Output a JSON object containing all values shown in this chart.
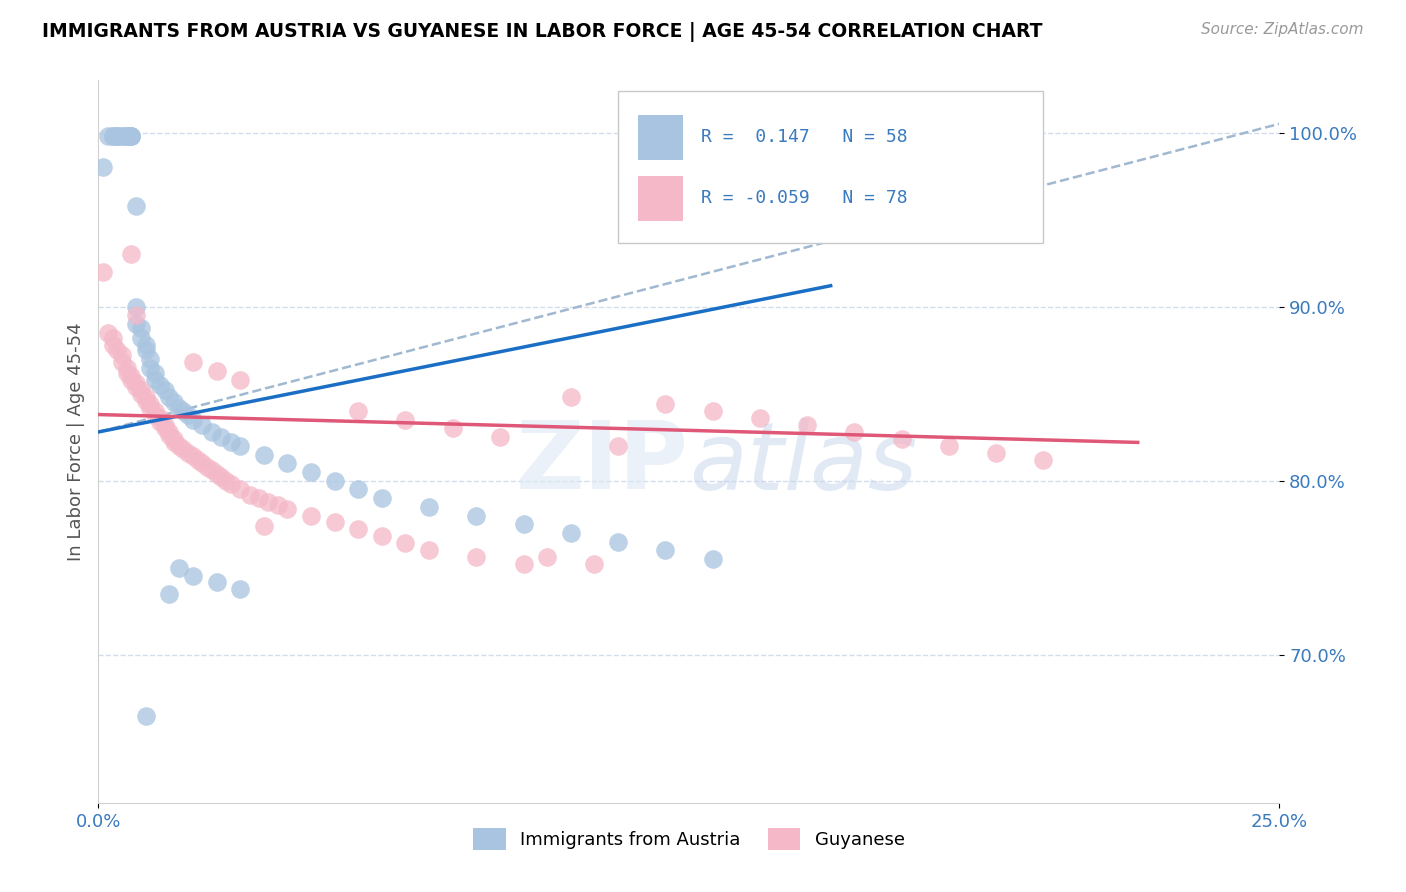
{
  "title": "IMMIGRANTS FROM AUSTRIA VS GUYANESE IN LABOR FORCE | AGE 45-54 CORRELATION CHART",
  "source": "Source: ZipAtlas.com",
  "ylabel": "In Labor Force | Age 45-54",
  "xlim": [
    0.0,
    0.25
  ],
  "ylim": [
    0.615,
    1.03
  ],
  "x_ticks": [
    0.0,
    0.25
  ],
  "x_tick_labels": [
    "0.0%",
    "25.0%"
  ],
  "y_ticks": [
    0.7,
    0.8,
    0.9,
    1.0
  ],
  "y_tick_labels": [
    "70.0%",
    "80.0%",
    "90.0%",
    "100.0%"
  ],
  "blue_color": "#a8c4e0",
  "pink_color": "#f4b8c8",
  "line_blue": "#1a6fc4",
  "line_pink": "#e05878",
  "line_dash_color": "#a0b8d0",
  "watermark_zip": "ZIP",
  "watermark_atlas": "atlas",
  "austria_scatter_x": [
    0.001,
    0.002,
    0.003,
    0.003,
    0.004,
    0.004,
    0.004,
    0.005,
    0.005,
    0.006,
    0.006,
    0.006,
    0.007,
    0.007,
    0.007,
    0.008,
    0.008,
    0.008,
    0.009,
    0.009,
    0.01,
    0.01,
    0.011,
    0.011,
    0.012,
    0.012,
    0.013,
    0.014,
    0.015,
    0.016,
    0.017,
    0.018,
    0.019,
    0.02,
    0.022,
    0.024,
    0.026,
    0.028,
    0.03,
    0.035,
    0.04,
    0.045,
    0.05,
    0.055,
    0.06,
    0.07,
    0.08,
    0.09,
    0.1,
    0.11,
    0.12,
    0.13,
    0.017,
    0.02,
    0.025,
    0.03,
    0.015,
    0.01
  ],
  "austria_scatter_y": [
    0.98,
    0.998,
    0.998,
    0.998,
    0.998,
    0.998,
    0.998,
    0.998,
    0.998,
    0.998,
    0.998,
    0.998,
    0.998,
    0.998,
    0.998,
    0.958,
    0.9,
    0.89,
    0.888,
    0.882,
    0.878,
    0.875,
    0.87,
    0.865,
    0.862,
    0.858,
    0.855,
    0.852,
    0.848,
    0.845,
    0.842,
    0.84,
    0.838,
    0.835,
    0.832,
    0.828,
    0.825,
    0.822,
    0.82,
    0.815,
    0.81,
    0.805,
    0.8,
    0.795,
    0.79,
    0.785,
    0.78,
    0.775,
    0.77,
    0.765,
    0.76,
    0.755,
    0.75,
    0.745,
    0.742,
    0.738,
    0.735,
    0.665
  ],
  "guyanese_scatter_x": [
    0.001,
    0.002,
    0.003,
    0.003,
    0.004,
    0.005,
    0.005,
    0.006,
    0.006,
    0.007,
    0.007,
    0.008,
    0.008,
    0.009,
    0.009,
    0.01,
    0.01,
    0.011,
    0.011,
    0.012,
    0.012,
    0.013,
    0.013,
    0.014,
    0.014,
    0.015,
    0.015,
    0.016,
    0.016,
    0.017,
    0.018,
    0.019,
    0.02,
    0.021,
    0.022,
    0.023,
    0.024,
    0.025,
    0.026,
    0.027,
    0.028,
    0.03,
    0.032,
    0.034,
    0.036,
    0.038,
    0.04,
    0.045,
    0.05,
    0.055,
    0.06,
    0.065,
    0.07,
    0.08,
    0.09,
    0.1,
    0.12,
    0.13,
    0.14,
    0.15,
    0.16,
    0.17,
    0.18,
    0.19,
    0.2,
    0.055,
    0.065,
    0.075,
    0.085,
    0.11,
    0.007,
    0.008,
    0.02,
    0.025,
    0.03,
    0.035,
    0.095,
    0.105
  ],
  "guyanese_scatter_y": [
    0.92,
    0.885,
    0.882,
    0.878,
    0.875,
    0.872,
    0.868,
    0.865,
    0.862,
    0.86,
    0.858,
    0.856,
    0.854,
    0.852,
    0.85,
    0.848,
    0.846,
    0.844,
    0.842,
    0.84,
    0.838,
    0.836,
    0.834,
    0.832,
    0.83,
    0.828,
    0.826,
    0.824,
    0.822,
    0.82,
    0.818,
    0.816,
    0.814,
    0.812,
    0.81,
    0.808,
    0.806,
    0.804,
    0.802,
    0.8,
    0.798,
    0.795,
    0.792,
    0.79,
    0.788,
    0.786,
    0.784,
    0.78,
    0.776,
    0.772,
    0.768,
    0.764,
    0.76,
    0.756,
    0.752,
    0.848,
    0.844,
    0.84,
    0.836,
    0.832,
    0.828,
    0.824,
    0.82,
    0.816,
    0.812,
    0.84,
    0.835,
    0.83,
    0.825,
    0.82,
    0.93,
    0.895,
    0.868,
    0.863,
    0.858,
    0.774,
    0.756,
    0.752
  ],
  "blue_line_x": [
    0.0,
    0.155
  ],
  "blue_line_y": [
    0.828,
    0.912
  ],
  "pink_line_x": [
    0.0,
    0.22
  ],
  "pink_line_y": [
    0.838,
    0.822
  ],
  "dash_line_x": [
    0.0,
    0.25
  ],
  "dash_line_y": [
    0.828,
    1.005
  ]
}
